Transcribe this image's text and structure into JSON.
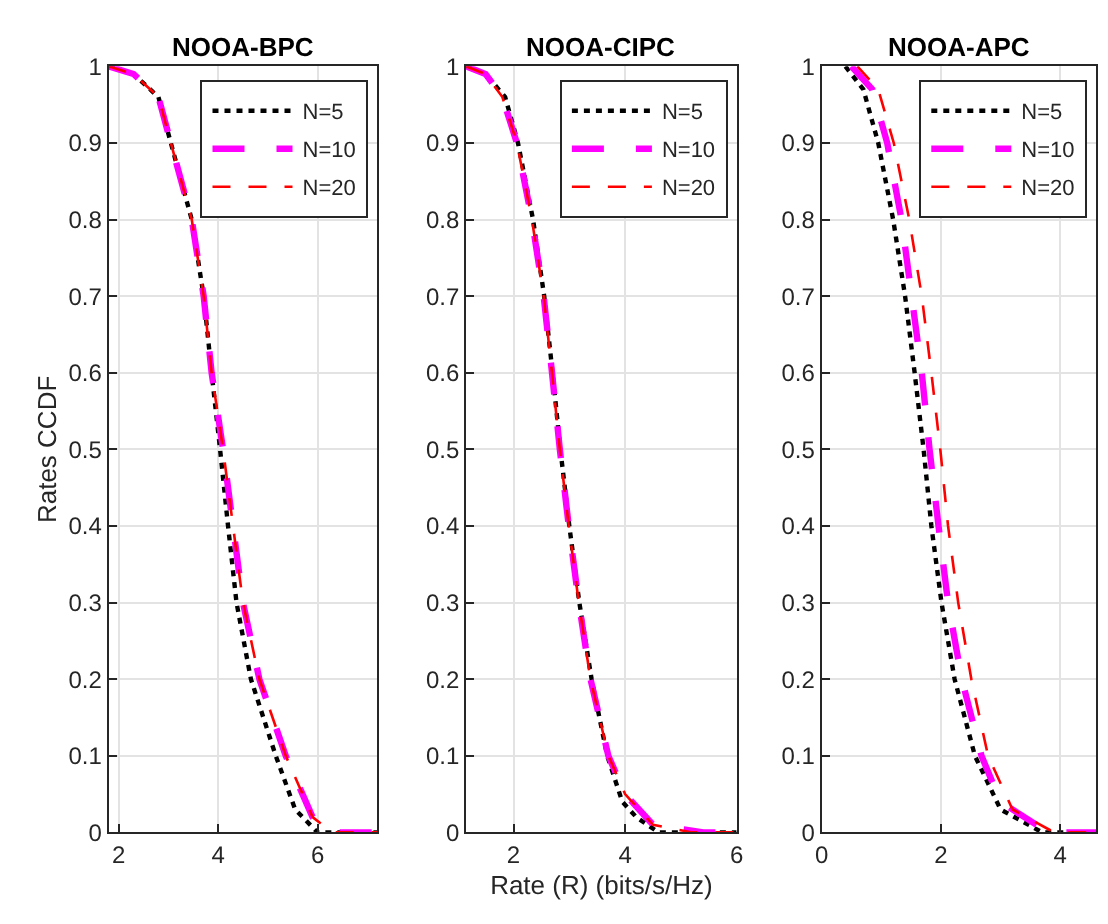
{
  "chart_data": [
    {
      "type": "line",
      "title": "NOOA-BPC",
      "ylabel": "Rates CCDF",
      "xlim": [
        1.8,
        7.2
      ],
      "xticks": [
        2,
        4,
        6
      ],
      "ylim": [
        0,
        1
      ],
      "yticks": [
        0,
        0.1,
        0.2,
        0.3,
        0.4,
        0.5,
        0.6,
        0.7,
        0.8,
        0.9,
        1
      ],
      "grid": true,
      "legend": "top right",
      "series": [
        {
          "name": "N=5",
          "color": "#000000",
          "line_style": "dotted",
          "x": [
            1.8,
            2.3,
            2.8,
            3.05,
            3.47,
            3.71,
            3.87,
            4.04,
            4.2,
            4.37,
            4.66,
            5.16,
            5.55,
            6.0,
            7.2
          ],
          "values": [
            1,
            0.99,
            0.96,
            0.9,
            0.8,
            0.7,
            0.6,
            0.5,
            0.4,
            0.3,
            0.2,
            0.1,
            0.03,
            0,
            0
          ]
        },
        {
          "name": "N=10",
          "color": "#ff00ff",
          "line_style": "dashed",
          "x": [
            1.8,
            2.3,
            2.8,
            3.05,
            3.47,
            3.71,
            3.87,
            4.1,
            4.3,
            4.5,
            4.83,
            5.36,
            5.9,
            6.3,
            7.2
          ],
          "values": [
            1,
            0.99,
            0.96,
            0.9,
            0.8,
            0.7,
            0.6,
            0.5,
            0.4,
            0.3,
            0.2,
            0.1,
            0.02,
            0,
            0
          ]
        },
        {
          "name": "N=20",
          "color": "#ff0000",
          "line_style": "dashed",
          "x": [
            1.8,
            2.3,
            2.8,
            3.05,
            3.47,
            3.71,
            3.87,
            4.1,
            4.3,
            4.5,
            4.83,
            5.36,
            5.9,
            6.3,
            7.2
          ],
          "values": [
            1,
            0.99,
            0.96,
            0.9,
            0.8,
            0.7,
            0.6,
            0.5,
            0.4,
            0.3,
            0.2,
            0.1,
            0.02,
            0,
            0
          ]
        }
      ]
    },
    {
      "type": "line",
      "title": "NOOA-CIPC",
      "xlabel": "Rate (R) (bits/s/Hz)",
      "xlim": [
        1.15,
        6
      ],
      "xticks": [
        2,
        4,
        6
      ],
      "ylim": [
        0,
        1
      ],
      "yticks": [
        0,
        0.1,
        0.2,
        0.3,
        0.4,
        0.5,
        0.6,
        0.7,
        0.8,
        0.9,
        1
      ],
      "grid": true,
      "legend": "top right",
      "series": [
        {
          "name": "N=5",
          "color": "#000000",
          "line_style": "dotted",
          "x": [
            1.15,
            1.5,
            1.85,
            2.08,
            2.35,
            2.55,
            2.7,
            2.84,
            3.0,
            3.18,
            3.4,
            3.68,
            3.95,
            4.2,
            4.6,
            6
          ],
          "values": [
            1,
            0.99,
            0.96,
            0.9,
            0.8,
            0.7,
            0.6,
            0.5,
            0.4,
            0.3,
            0.2,
            0.1,
            0.04,
            0.02,
            0,
            0
          ]
        },
        {
          "name": "N=10",
          "color": "#ff00ff",
          "line_style": "dashed",
          "x": [
            1.15,
            1.5,
            1.8,
            2.06,
            2.33,
            2.54,
            2.69,
            2.83,
            2.99,
            3.17,
            3.38,
            3.7,
            4.0,
            4.5,
            5.4,
            6
          ],
          "values": [
            1,
            0.99,
            0.96,
            0.9,
            0.8,
            0.7,
            0.6,
            0.5,
            0.4,
            0.3,
            0.2,
            0.1,
            0.05,
            0.01,
            0,
            0
          ]
        },
        {
          "name": "N=20",
          "color": "#ff0000",
          "line_style": "dashed",
          "x": [
            1.15,
            1.5,
            1.8,
            2.06,
            2.33,
            2.54,
            2.69,
            2.83,
            2.99,
            3.17,
            3.38,
            3.7,
            4.0,
            4.5,
            5.2,
            6
          ],
          "values": [
            1,
            0.99,
            0.96,
            0.9,
            0.8,
            0.7,
            0.6,
            0.5,
            0.4,
            0.3,
            0.2,
            0.1,
            0.05,
            0.01,
            0,
            0
          ]
        }
      ]
    },
    {
      "type": "line",
      "title": "NOOA-APC",
      "xlim": [
        0,
        4.6
      ],
      "xticks": [
        0,
        2,
        4
      ],
      "ylim": [
        0,
        1
      ],
      "yticks": [
        0,
        0.1,
        0.2,
        0.3,
        0.4,
        0.5,
        0.6,
        0.7,
        0.8,
        0.9,
        1
      ],
      "grid": true,
      "legend": "top right",
      "series": [
        {
          "name": "N=5",
          "color": "#000000",
          "line_style": "dotted",
          "x": [
            0.4,
            0.7,
            0.95,
            1.2,
            1.4,
            1.56,
            1.71,
            1.84,
            2.01,
            2.23,
            2.57,
            3.0,
            3.7,
            4.6
          ],
          "values": [
            1,
            0.97,
            0.9,
            0.8,
            0.7,
            0.6,
            0.5,
            0.4,
            0.3,
            0.2,
            0.1,
            0.03,
            0,
            0
          ]
        },
        {
          "name": "N=10",
          "color": "#ff00ff",
          "line_style": "dashed",
          "x": [
            0.5,
            0.85,
            1.1,
            1.34,
            1.51,
            1.68,
            1.81,
            1.96,
            2.12,
            2.35,
            2.68,
            3.0,
            3.8,
            4.6
          ],
          "values": [
            1,
            0.97,
            0.9,
            0.8,
            0.7,
            0.6,
            0.5,
            0.4,
            0.3,
            0.2,
            0.1,
            0.04,
            0,
            0
          ]
        },
        {
          "name": "N=20",
          "color": "#ff0000",
          "line_style": "dashed",
          "x": [
            0.6,
            0.95,
            1.21,
            1.47,
            1.68,
            1.84,
            1.99,
            2.12,
            2.29,
            2.51,
            2.79,
            3.2,
            3.9,
            4.6
          ],
          "values": [
            1,
            0.97,
            0.9,
            0.8,
            0.7,
            0.6,
            0.5,
            0.4,
            0.3,
            0.2,
            0.1,
            0.03,
            0,
            0
          ]
        }
      ]
    }
  ]
}
